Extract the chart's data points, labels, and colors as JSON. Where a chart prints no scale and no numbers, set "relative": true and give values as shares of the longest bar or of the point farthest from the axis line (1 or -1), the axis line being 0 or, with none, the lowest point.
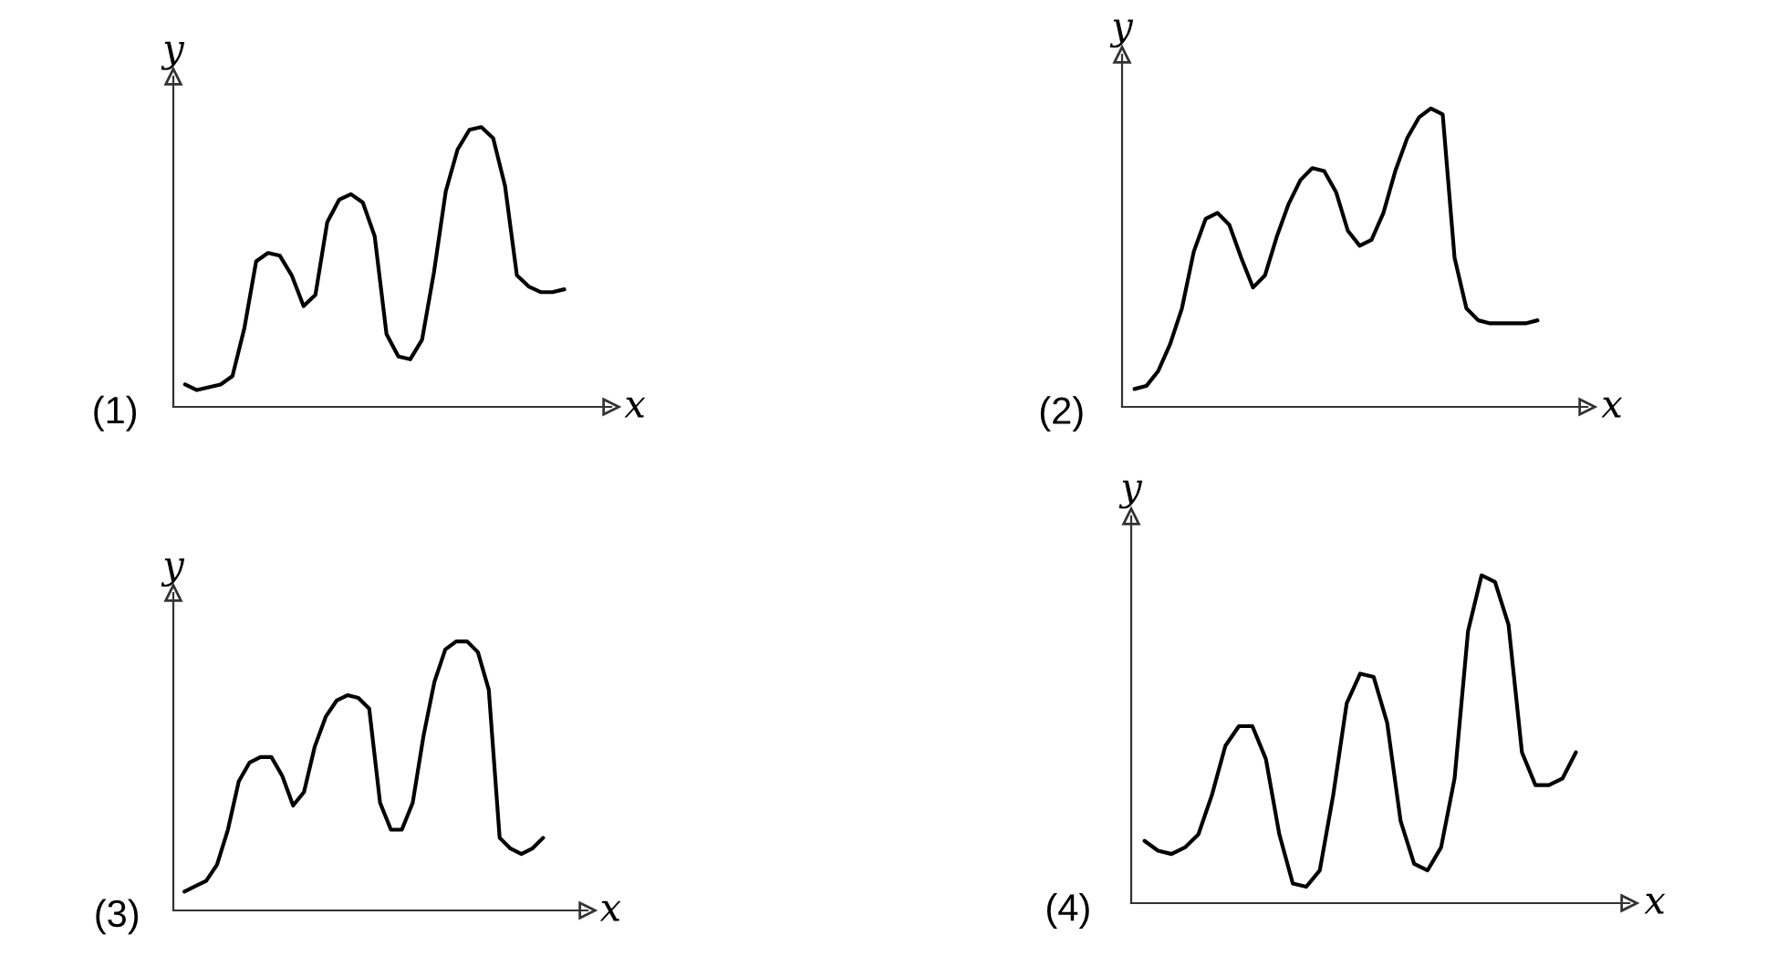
{
  "chart_data": [
    {
      "type": "line",
      "title": "(1)",
      "xlabel": "x",
      "ylabel": "y",
      "relative": true,
      "categories": [
        null,
        null,
        null,
        null,
        null,
        null,
        null,
        null,
        null,
        null,
        null,
        null,
        null,
        null,
        null,
        null,
        null,
        null,
        null,
        null,
        null,
        null,
        null,
        null,
        null,
        null,
        null,
        null,
        null,
        null,
        null,
        null,
        null
      ],
      "series": [
        {
          "color": "#000000",
          "values": [
            0.08,
            0.06,
            0.07,
            0.08,
            0.11,
            0.28,
            0.52,
            0.55,
            0.54,
            0.47,
            0.36,
            0.4,
            0.66,
            0.74,
            0.76,
            0.73,
            0.61,
            0.26,
            0.18,
            0.17,
            0.24,
            0.48,
            0.77,
            0.92,
            0.99,
            1.0,
            0.96,
            0.79,
            0.47,
            0.43,
            0.41,
            0.41,
            0.42
          ]
        }
      ]
    },
    {
      "type": "line",
      "title": "(2)",
      "xlabel": "x",
      "ylabel": "y",
      "relative": true,
      "categories": [
        null,
        null,
        null,
        null,
        null,
        null,
        null,
        null,
        null,
        null,
        null,
        null,
        null,
        null,
        null,
        null,
        null,
        null,
        null,
        null,
        null,
        null,
        null,
        null,
        null,
        null,
        null,
        null,
        null,
        null,
        null,
        null,
        null,
        null,
        null
      ],
      "series": [
        {
          "color": "#000000",
          "values": [
            0.06,
            0.07,
            0.12,
            0.21,
            0.33,
            0.52,
            0.63,
            0.65,
            0.61,
            0.5,
            0.4,
            0.44,
            0.57,
            0.68,
            0.76,
            0.8,
            0.79,
            0.72,
            0.59,
            0.54,
            0.56,
            0.65,
            0.79,
            0.9,
            0.97,
            1.0,
            0.98,
            0.5,
            0.33,
            0.29,
            0.28,
            0.28,
            0.28,
            0.28,
            0.29
          ]
        }
      ]
    },
    {
      "type": "line",
      "title": "(3)",
      "xlabel": "x",
      "ylabel": "y",
      "relative": true,
      "categories": [
        null,
        null,
        null,
        null,
        null,
        null,
        null,
        null,
        null,
        null,
        null,
        null,
        null,
        null,
        null,
        null,
        null,
        null,
        null,
        null,
        null,
        null,
        null,
        null,
        null,
        null,
        null,
        null,
        null,
        null,
        null,
        null,
        null,
        null
      ],
      "series": [
        {
          "color": "#000000",
          "values": [
            0.07,
            0.09,
            0.11,
            0.17,
            0.3,
            0.48,
            0.55,
            0.57,
            0.57,
            0.5,
            0.39,
            0.44,
            0.61,
            0.72,
            0.78,
            0.8,
            0.79,
            0.75,
            0.4,
            0.3,
            0.3,
            0.4,
            0.65,
            0.85,
            0.97,
            1.0,
            1.0,
            0.96,
            0.82,
            0.27,
            0.23,
            0.21,
            0.23,
            0.27
          ]
        }
      ]
    },
    {
      "type": "line",
      "title": "(4)",
      "xlabel": "x",
      "ylabel": "y",
      "relative": true,
      "categories": [
        null,
        null,
        null,
        null,
        null,
        null,
        null,
        null,
        null,
        null,
        null,
        null,
        null,
        null,
        null,
        null,
        null,
        null,
        null,
        null,
        null,
        null,
        null,
        null,
        null,
        null,
        null,
        null,
        null,
        null,
        null,
        null,
        null
      ],
      "series": [
        {
          "color": "#000000",
          "values": [
            0.19,
            0.16,
            0.15,
            0.17,
            0.21,
            0.33,
            0.48,
            0.54,
            0.54,
            0.44,
            0.21,
            0.06,
            0.05,
            0.1,
            0.33,
            0.61,
            0.7,
            0.69,
            0.55,
            0.25,
            0.12,
            0.1,
            0.17,
            0.38,
            0.83,
            1.0,
            0.98,
            0.85,
            0.46,
            0.36,
            0.36,
            0.38,
            0.46
          ]
        }
      ]
    }
  ]
}
